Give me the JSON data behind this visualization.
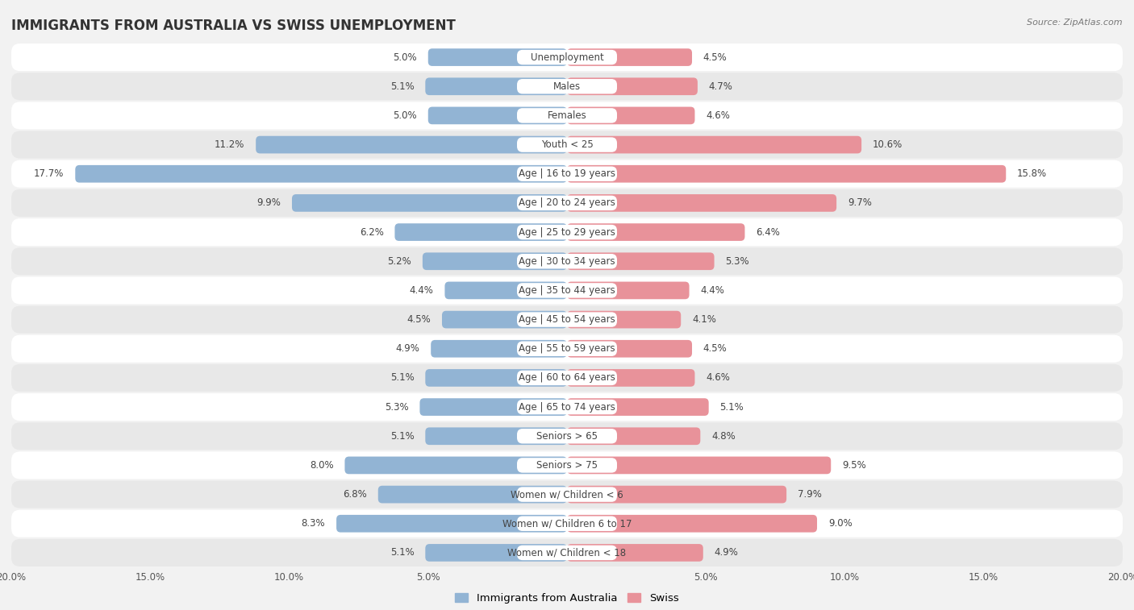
{
  "title": "IMMIGRANTS FROM AUSTRALIA VS SWISS UNEMPLOYMENT",
  "source": "Source: ZipAtlas.com",
  "categories": [
    "Unemployment",
    "Males",
    "Females",
    "Youth < 25",
    "Age | 16 to 19 years",
    "Age | 20 to 24 years",
    "Age | 25 to 29 years",
    "Age | 30 to 34 years",
    "Age | 35 to 44 years",
    "Age | 45 to 54 years",
    "Age | 55 to 59 years",
    "Age | 60 to 64 years",
    "Age | 65 to 74 years",
    "Seniors > 65",
    "Seniors > 75",
    "Women w/ Children < 6",
    "Women w/ Children 6 to 17",
    "Women w/ Children < 18"
  ],
  "left_values": [
    5.0,
    5.1,
    5.0,
    11.2,
    17.7,
    9.9,
    6.2,
    5.2,
    4.4,
    4.5,
    4.9,
    5.1,
    5.3,
    5.1,
    8.0,
    6.8,
    8.3,
    5.1
  ],
  "right_values": [
    4.5,
    4.7,
    4.6,
    10.6,
    15.8,
    9.7,
    6.4,
    5.3,
    4.4,
    4.1,
    4.5,
    4.6,
    5.1,
    4.8,
    9.5,
    7.9,
    9.0,
    4.9
  ],
  "left_color": "#92b4d4",
  "right_color": "#e8929a",
  "left_label": "Immigrants from Australia",
  "right_label": "Swiss",
  "background_color": "#f2f2f2",
  "row_bg_even": "#ffffff",
  "row_bg_odd": "#e8e8e8",
  "xlim": 20.0,
  "title_fontsize": 12,
  "label_fontsize": 8.5,
  "value_fontsize": 8.5,
  "tick_fontsize": 8.5
}
